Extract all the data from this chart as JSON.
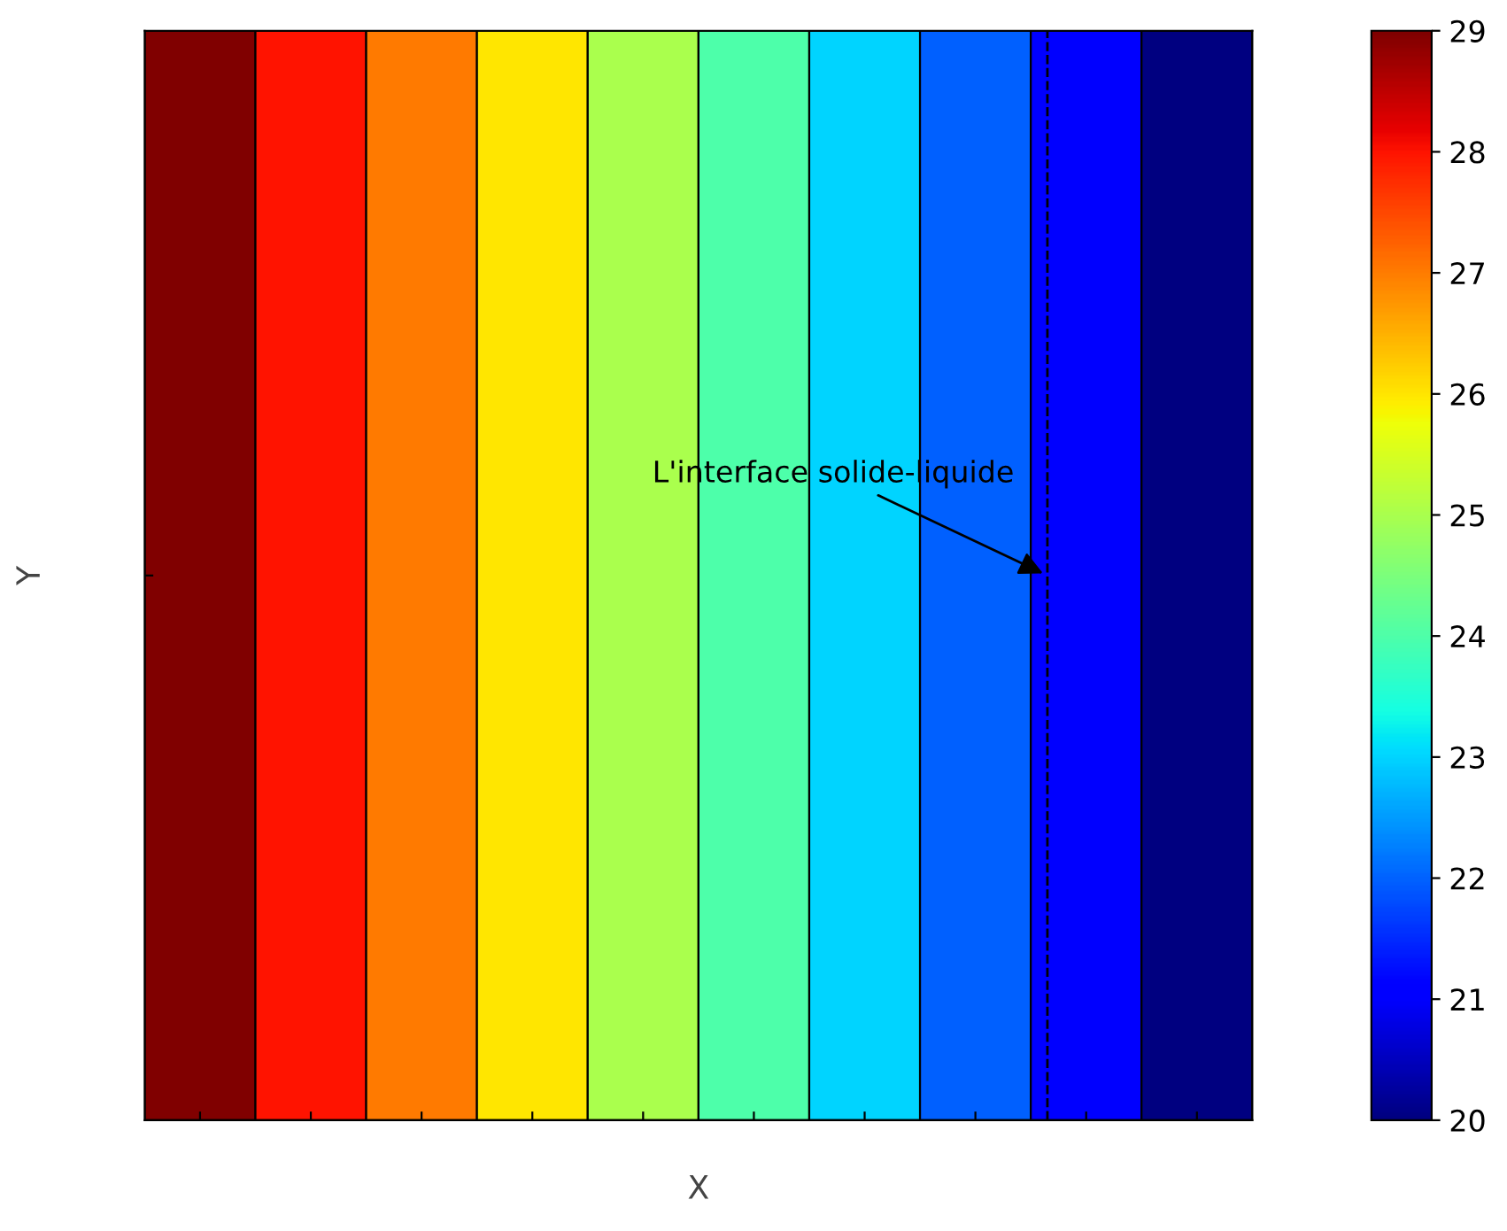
{
  "chart_data": {
    "type": "heatmap",
    "xlabel": "X",
    "ylabel": "Y",
    "categories": [
      null,
      null,
      null,
      null,
      null,
      null,
      null,
      null,
      null,
      null
    ],
    "y_categories": [
      null
    ],
    "cells": [
      [
        29,
        28,
        27,
        26,
        25,
        24,
        23,
        22,
        21,
        20
      ]
    ],
    "clim": [
      20,
      29
    ],
    "cticks": [
      20,
      21,
      22,
      23,
      24,
      25,
      26,
      27,
      28,
      29
    ],
    "annotations": [
      "L'interface solide-liquide"
    ],
    "tick_labels": false
  }
}
